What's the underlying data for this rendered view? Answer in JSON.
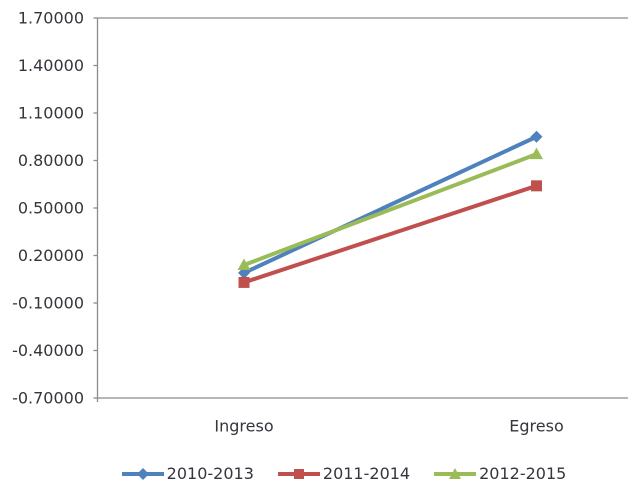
{
  "chart_data": {
    "type": "line",
    "title": "",
    "xlabel": "",
    "ylabel": "",
    "categories": [
      "Ingreso",
      "Egreso"
    ],
    "series": [
      {
        "name": "2010-2013",
        "color": "#4F81BD",
        "marker": "diamond",
        "values": [
          0.09,
          0.95
        ]
      },
      {
        "name": "2011-2014",
        "color": "#C0504D",
        "marker": "square",
        "values": [
          0.03,
          0.64
        ]
      },
      {
        "name": "2012-2015",
        "color": "#9BBB59",
        "marker": "triangle",
        "values": [
          0.14,
          0.84
        ]
      }
    ],
    "ylim": [
      -0.7,
      1.7
    ],
    "y_tick_step": 0.3,
    "y_ticks": [
      1.7,
      1.4,
      1.1,
      0.8,
      0.5,
      0.2,
      -0.1,
      -0.4,
      -0.7
    ],
    "y_tick_labels": [
      "1.70000",
      "1.40000",
      "1.10000",
      "0.80000",
      "0.50000",
      "0.20000",
      "-0.10000",
      "-0.40000",
      "-0.70000"
    ],
    "grid": false,
    "legend_position": "bottom"
  },
  "colors": {
    "background": "#FFFFFF",
    "axis": "#8C8C8C",
    "text": "#35353D",
    "series_blue": "#4F81BD",
    "series_red": "#C0504D",
    "series_green": "#9BBB59"
  }
}
